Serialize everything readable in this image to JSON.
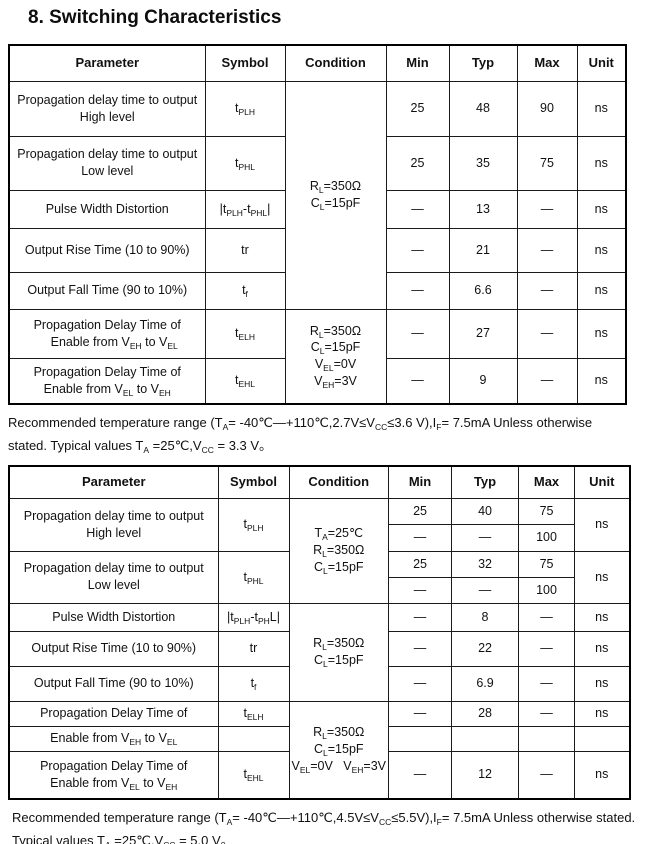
{
  "title": "8. Switching Characteristics",
  "table1": {
    "headers": [
      "Parameter",
      "Symbol",
      "Condition",
      "Min",
      "Typ",
      "Max",
      "Unit"
    ],
    "cond_load": "R<sub>L</sub>=350Ω<br>C<sub>L</sub>=15pF",
    "cond_enable": "R<sub>L</sub>=350Ω<br>C<sub>L</sub>=15pF<br>V<sub>EL</sub>=0V<br>V<sub>EH</sub>=3V",
    "rows": [
      {
        "param": "Propagation delay time to output<br>High level",
        "symbol": "t<sub>PLH</sub>",
        "min": "25",
        "typ": "48",
        "max": "90",
        "unit": "ns"
      },
      {
        "param": "Propagation delay time to output<br>Low level",
        "symbol": "t<sub>PHL</sub>",
        "min": "25",
        "typ": "35",
        "max": "75",
        "unit": "ns"
      },
      {
        "param": "Pulse Width Distortion",
        "symbol": "|t<sub>PLH</sub>-t<sub>PHL</sub>|",
        "min": "—",
        "typ": "13",
        "max": "—",
        "unit": "ns"
      },
      {
        "param": "Output Rise Time (10 to 90%)",
        "symbol": "tr",
        "min": "—",
        "typ": "21",
        "max": "—",
        "unit": "ns"
      },
      {
        "param": "Output Fall Time (90 to 10%)",
        "symbol": "t<sub>f</sub>",
        "min": "—",
        "typ": "6.6",
        "max": "—",
        "unit": "ns"
      },
      {
        "param": "Propagation Delay Time of<br>&nbsp;&nbsp;&nbsp;&nbsp;Enable from V<sub>EH</sub> to V<sub>EL</sub>",
        "symbol": "t<sub>ELH</sub>",
        "min": "—",
        "typ": "27",
        "max": "—",
        "unit": "ns"
      },
      {
        "param": "Propagation Delay Time of<br>Enable from V<sub>EL</sub> to V<sub>EH</sub>",
        "symbol": "t<sub>EHL</sub>",
        "min": "—",
        "typ": "9",
        "max": "—",
        "unit": "ns"
      }
    ],
    "note": "Recommended temperature range (T<sub>A</sub>= -40℃—+110℃,2.7V≤V<sub>CC</sub>≤3.6 V),I<sub>F</sub>= 7.5mA Unless otherwise<br>stated. Typical values T<sub>A</sub> =25℃,V<sub>CC</sub> = 3.3 V。"
  },
  "table2": {
    "headers": [
      "Parameter",
      "Symbol",
      "Condition",
      "Min",
      "Typ",
      "Max",
      "Unit"
    ],
    "cond_ta": "T<sub>A</sub>=25℃<br>R<sub>L</sub>=350Ω<br>C<sub>L</sub>=15pF",
    "cond_load": "R<sub>L</sub>=350Ω<br>C<sub>L</sub>=15pF",
    "cond_enable": "R<sub>L</sub>=350Ω<br>C<sub>L</sub>=15pF<br>V<sub>EL</sub>=0V&nbsp;&nbsp;&nbsp;V<sub>EH</sub>=3V",
    "row_plh": {
      "param": "Propagation delay time to output<br>High level",
      "symbol": "t<sub>PLH</sub>",
      "unit": "ns",
      "a": {
        "min": "25",
        "typ": "40",
        "max": "75"
      },
      "b": {
        "min": "—",
        "typ": "—",
        "max": "100"
      }
    },
    "row_phl": {
      "param": "Propagation delay time to output<br>Low level",
      "symbol": "t<sub>PHL</sub>",
      "unit": "ns",
      "a": {
        "min": "25",
        "typ": "32",
        "max": "75"
      },
      "b": {
        "min": "—",
        "typ": "—",
        "max": "100"
      }
    },
    "row_pwd": {
      "param": "Pulse Width Distortion",
      "symbol": "|t<sub>PLH</sub>-t<sub>PH</sub>L|",
      "min": "—",
      "typ": "8",
      "max": "—",
      "unit": "ns"
    },
    "row_tr": {
      "param": "Output Rise Time (10 to 90%)",
      "symbol": "tr",
      "min": "—",
      "typ": "22",
      "max": "—",
      "unit": "ns"
    },
    "row_tf": {
      "param": "Output Fall Time (90 to 10%)",
      "symbol": "t<sub>f</sub>",
      "min": "—",
      "typ": "6.9",
      "max": "—",
      "unit": "ns"
    },
    "row_telh_a": {
      "param": "Propagation Delay Time of",
      "symbol": "t<sub>ELH</sub>",
      "min": "—",
      "typ": "28",
      "max": "—",
      "unit": "ns"
    },
    "row_telh_b": {
      "param": "Enable from V<sub>EH</sub> to V<sub>EL</sub>"
    },
    "row_tehl": {
      "param": "Propagation Delay Time of<br>Enable from V<sub>EL</sub> to V<sub>EH</sub>",
      "symbol": "t<sub>EHL</sub>",
      "min": "—",
      "typ": "12",
      "max": "—",
      "unit": "ns"
    },
    "note": "Recommended temperature range (T<sub>A</sub>= -40℃—+110℃,4.5V≤V<sub>CC</sub>≤5.5V),I<sub>F</sub>= 7.5mA Unless otherwise stated.<br>Typical values T<sub>A</sub> =25℃,V<sub>CC</sub> = 5.0 V。"
  }
}
